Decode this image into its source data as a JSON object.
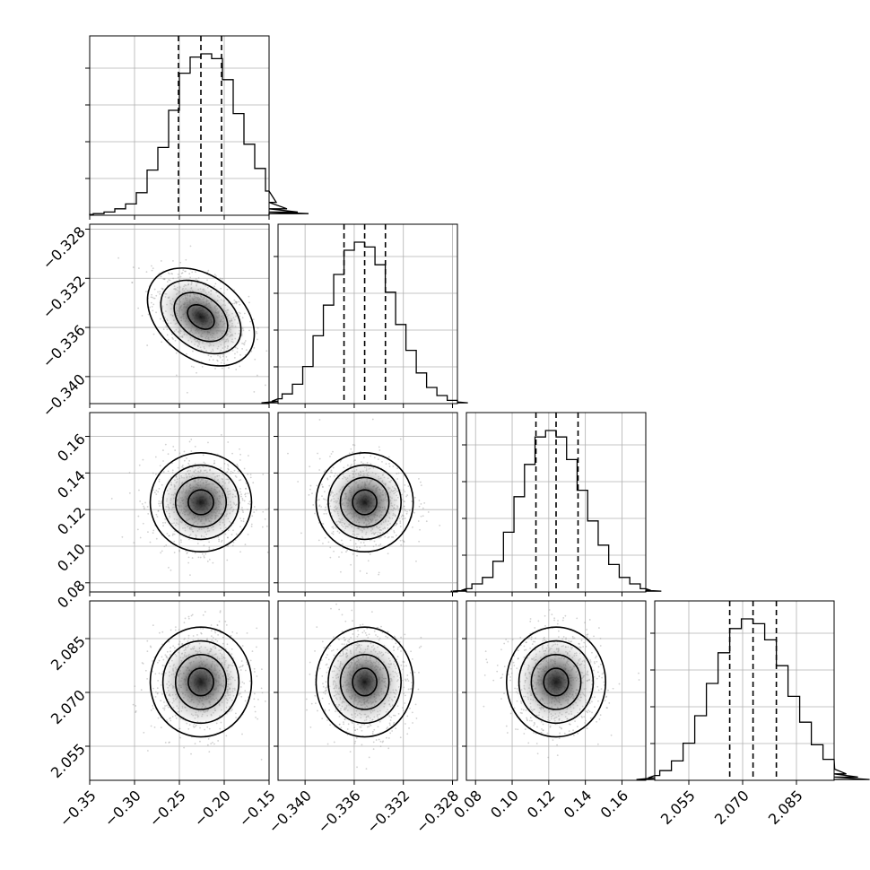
{
  "chart_data": {
    "type": "corner",
    "title": "",
    "parameters": [
      {
        "range": [
          -0.35,
          -0.15
        ],
        "ticks": [
          -0.35,
          -0.3,
          -0.25,
          -0.2,
          -0.15
        ],
        "tick_labels": [
          "−0.35",
          "−0.30",
          "−0.25",
          "−0.20",
          "−0.15"
        ],
        "quantiles": [
          -0.251,
          -0.226,
          -0.203
        ],
        "mean": -0.226,
        "sd": 0.024
      },
      {
        "range": [
          -0.3422,
          -0.3276
        ],
        "ticks": [
          -0.34,
          -0.336,
          -0.332,
          -0.328
        ],
        "tick_labels": [
          "−0.340",
          "−0.336",
          "−0.332",
          "−0.328"
        ],
        "quantiles": [
          -0.33683,
          -0.33515,
          -0.33346
        ],
        "mean": -0.33515,
        "sd": 0.00168
      },
      {
        "range": [
          0.075,
          0.173
        ],
        "ticks": [
          0.08,
          0.1,
          0.12,
          0.14,
          0.16
        ],
        "tick_labels": [
          "0.08",
          "0.10",
          "0.12",
          "0.14",
          "0.16"
        ],
        "quantiles": [
          0.113,
          0.124,
          0.136
        ],
        "mean": 0.124,
        "sd": 0.0115
      },
      {
        "range": [
          2.0455,
          2.0955
        ],
        "ticks": [
          2.055,
          2.07,
          2.085
        ],
        "tick_labels": [
          "2.055",
          "2.070",
          "2.085"
        ],
        "quantiles": [
          2.0664,
          2.0729,
          2.0794
        ],
        "mean": 2.0729,
        "sd": 0.0065
      }
    ],
    "histograms": [
      [
        0.005,
        0.01,
        0.02,
        0.04,
        0.07,
        0.14,
        0.28,
        0.42,
        0.65,
        0.88,
        0.98,
        1.0,
        0.97,
        0.84,
        0.63,
        0.44,
        0.29,
        0.15,
        0.08,
        0.04,
        0.02,
        0.01
      ],
      [
        0.005,
        0.015,
        0.03,
        0.06,
        0.12,
        0.23,
        0.42,
        0.61,
        0.8,
        0.95,
        1.0,
        0.97,
        0.86,
        0.69,
        0.49,
        0.33,
        0.19,
        0.1,
        0.05,
        0.02,
        0.01,
        0.005
      ],
      [
        0.005,
        0.01,
        0.02,
        0.05,
        0.09,
        0.19,
        0.37,
        0.59,
        0.79,
        0.96,
        1.0,
        0.96,
        0.82,
        0.63,
        0.44,
        0.29,
        0.17,
        0.09,
        0.05,
        0.02,
        0.01,
        0.005
      ],
      [
        0.005,
        0.015,
        0.03,
        0.06,
        0.12,
        0.23,
        0.4,
        0.6,
        0.79,
        0.94,
        1.0,
        0.97,
        0.87,
        0.71,
        0.52,
        0.36,
        0.22,
        0.13,
        0.07,
        0.04,
        0.02,
        0.005
      ]
    ],
    "correlations": [
      [
        1,
        -0.45,
        0,
        0
      ],
      [
        -0.45,
        1,
        0,
        0
      ],
      [
        0,
        0,
        1,
        0
      ],
      [
        0,
        0,
        0,
        1
      ]
    ],
    "contour_levels_sigma": [
      0.5,
      1.0,
      1.5,
      2.0
    ],
    "grid": true,
    "legend": "none"
  }
}
